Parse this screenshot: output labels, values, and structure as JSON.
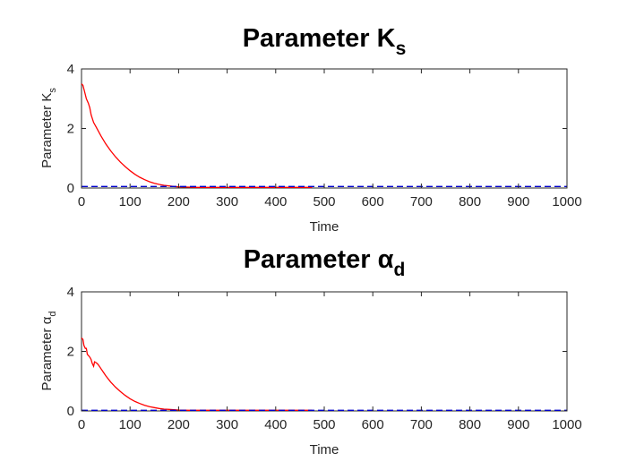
{
  "chart_data": [
    {
      "type": "line",
      "title": "Parameter K",
      "title_subscript": "s",
      "xlabel": "Time",
      "ylabel": "Parameter K",
      "ylabel_subscript": "s",
      "xlim": [
        0,
        1000
      ],
      "ylim": [
        0,
        4
      ],
      "xticks": [
        "0",
        "100",
        "200",
        "300",
        "400",
        "500",
        "600",
        "700",
        "800",
        "900",
        "1000"
      ],
      "yticks": [
        "0",
        "2",
        "4"
      ],
      "grid": false,
      "series": [
        {
          "style": "solid",
          "color": "#ff0000",
          "x": [
            0,
            3,
            6,
            10,
            14,
            17,
            20,
            25,
            30,
            40,
            50,
            60,
            70,
            80,
            90,
            100,
            110,
            120,
            130,
            140,
            150,
            160,
            170,
            180,
            190,
            200,
            220,
            240,
            260,
            280,
            300,
            350,
            400,
            450,
            475
          ],
          "y": [
            3.5,
            3.45,
            3.25,
            3.0,
            2.85,
            2.7,
            2.45,
            2.2,
            2.05,
            1.75,
            1.48,
            1.25,
            1.05,
            0.87,
            0.72,
            0.58,
            0.46,
            0.36,
            0.28,
            0.21,
            0.16,
            0.12,
            0.09,
            0.07,
            0.05,
            0.04,
            0.03,
            0.02,
            0.02,
            0.02,
            0.02,
            0.02,
            0.02,
            0.02,
            0.02
          ]
        },
        {
          "style": "dashed",
          "color": "#0000cc",
          "x": [
            0,
            1000
          ],
          "y": [
            0.05,
            0.05
          ]
        }
      ]
    },
    {
      "type": "line",
      "title": "Parameter α",
      "title_subscript": "d",
      "xlabel": "Time",
      "ylabel": "Parameter α",
      "ylabel_subscript": "d",
      "xlim": [
        0,
        1000
      ],
      "ylim": [
        0,
        4
      ],
      "xticks": [
        "0",
        "100",
        "200",
        "300",
        "400",
        "500",
        "600",
        "700",
        "800",
        "900",
        "1000"
      ],
      "yticks": [
        "0",
        "2",
        "4"
      ],
      "grid": false,
      "series": [
        {
          "style": "solid",
          "color": "#ff0000",
          "x": [
            0,
            3,
            5,
            8,
            10,
            12,
            15,
            18,
            20,
            22,
            25,
            27,
            30,
            33,
            36,
            40,
            45,
            50,
            60,
            70,
            80,
            90,
            100,
            110,
            120,
            130,
            140,
            150,
            160,
            170,
            180,
            190,
            200,
            220,
            240,
            260,
            280,
            300,
            350,
            400,
            450,
            475
          ],
          "y": [
            2.45,
            2.4,
            2.2,
            2.1,
            2.1,
            1.9,
            1.85,
            1.78,
            1.72,
            1.6,
            1.5,
            1.65,
            1.62,
            1.58,
            1.52,
            1.42,
            1.3,
            1.18,
            0.97,
            0.8,
            0.65,
            0.52,
            0.41,
            0.32,
            0.25,
            0.19,
            0.14,
            0.11,
            0.08,
            0.06,
            0.05,
            0.04,
            0.03,
            0.02,
            0.02,
            0.02,
            0.02,
            0.02,
            0.02,
            0.02,
            0.02,
            0.02
          ]
        },
        {
          "style": "dashed",
          "color": "#0000cc",
          "x": [
            0,
            1000
          ],
          "y": [
            0.02,
            0.02
          ]
        }
      ]
    }
  ]
}
